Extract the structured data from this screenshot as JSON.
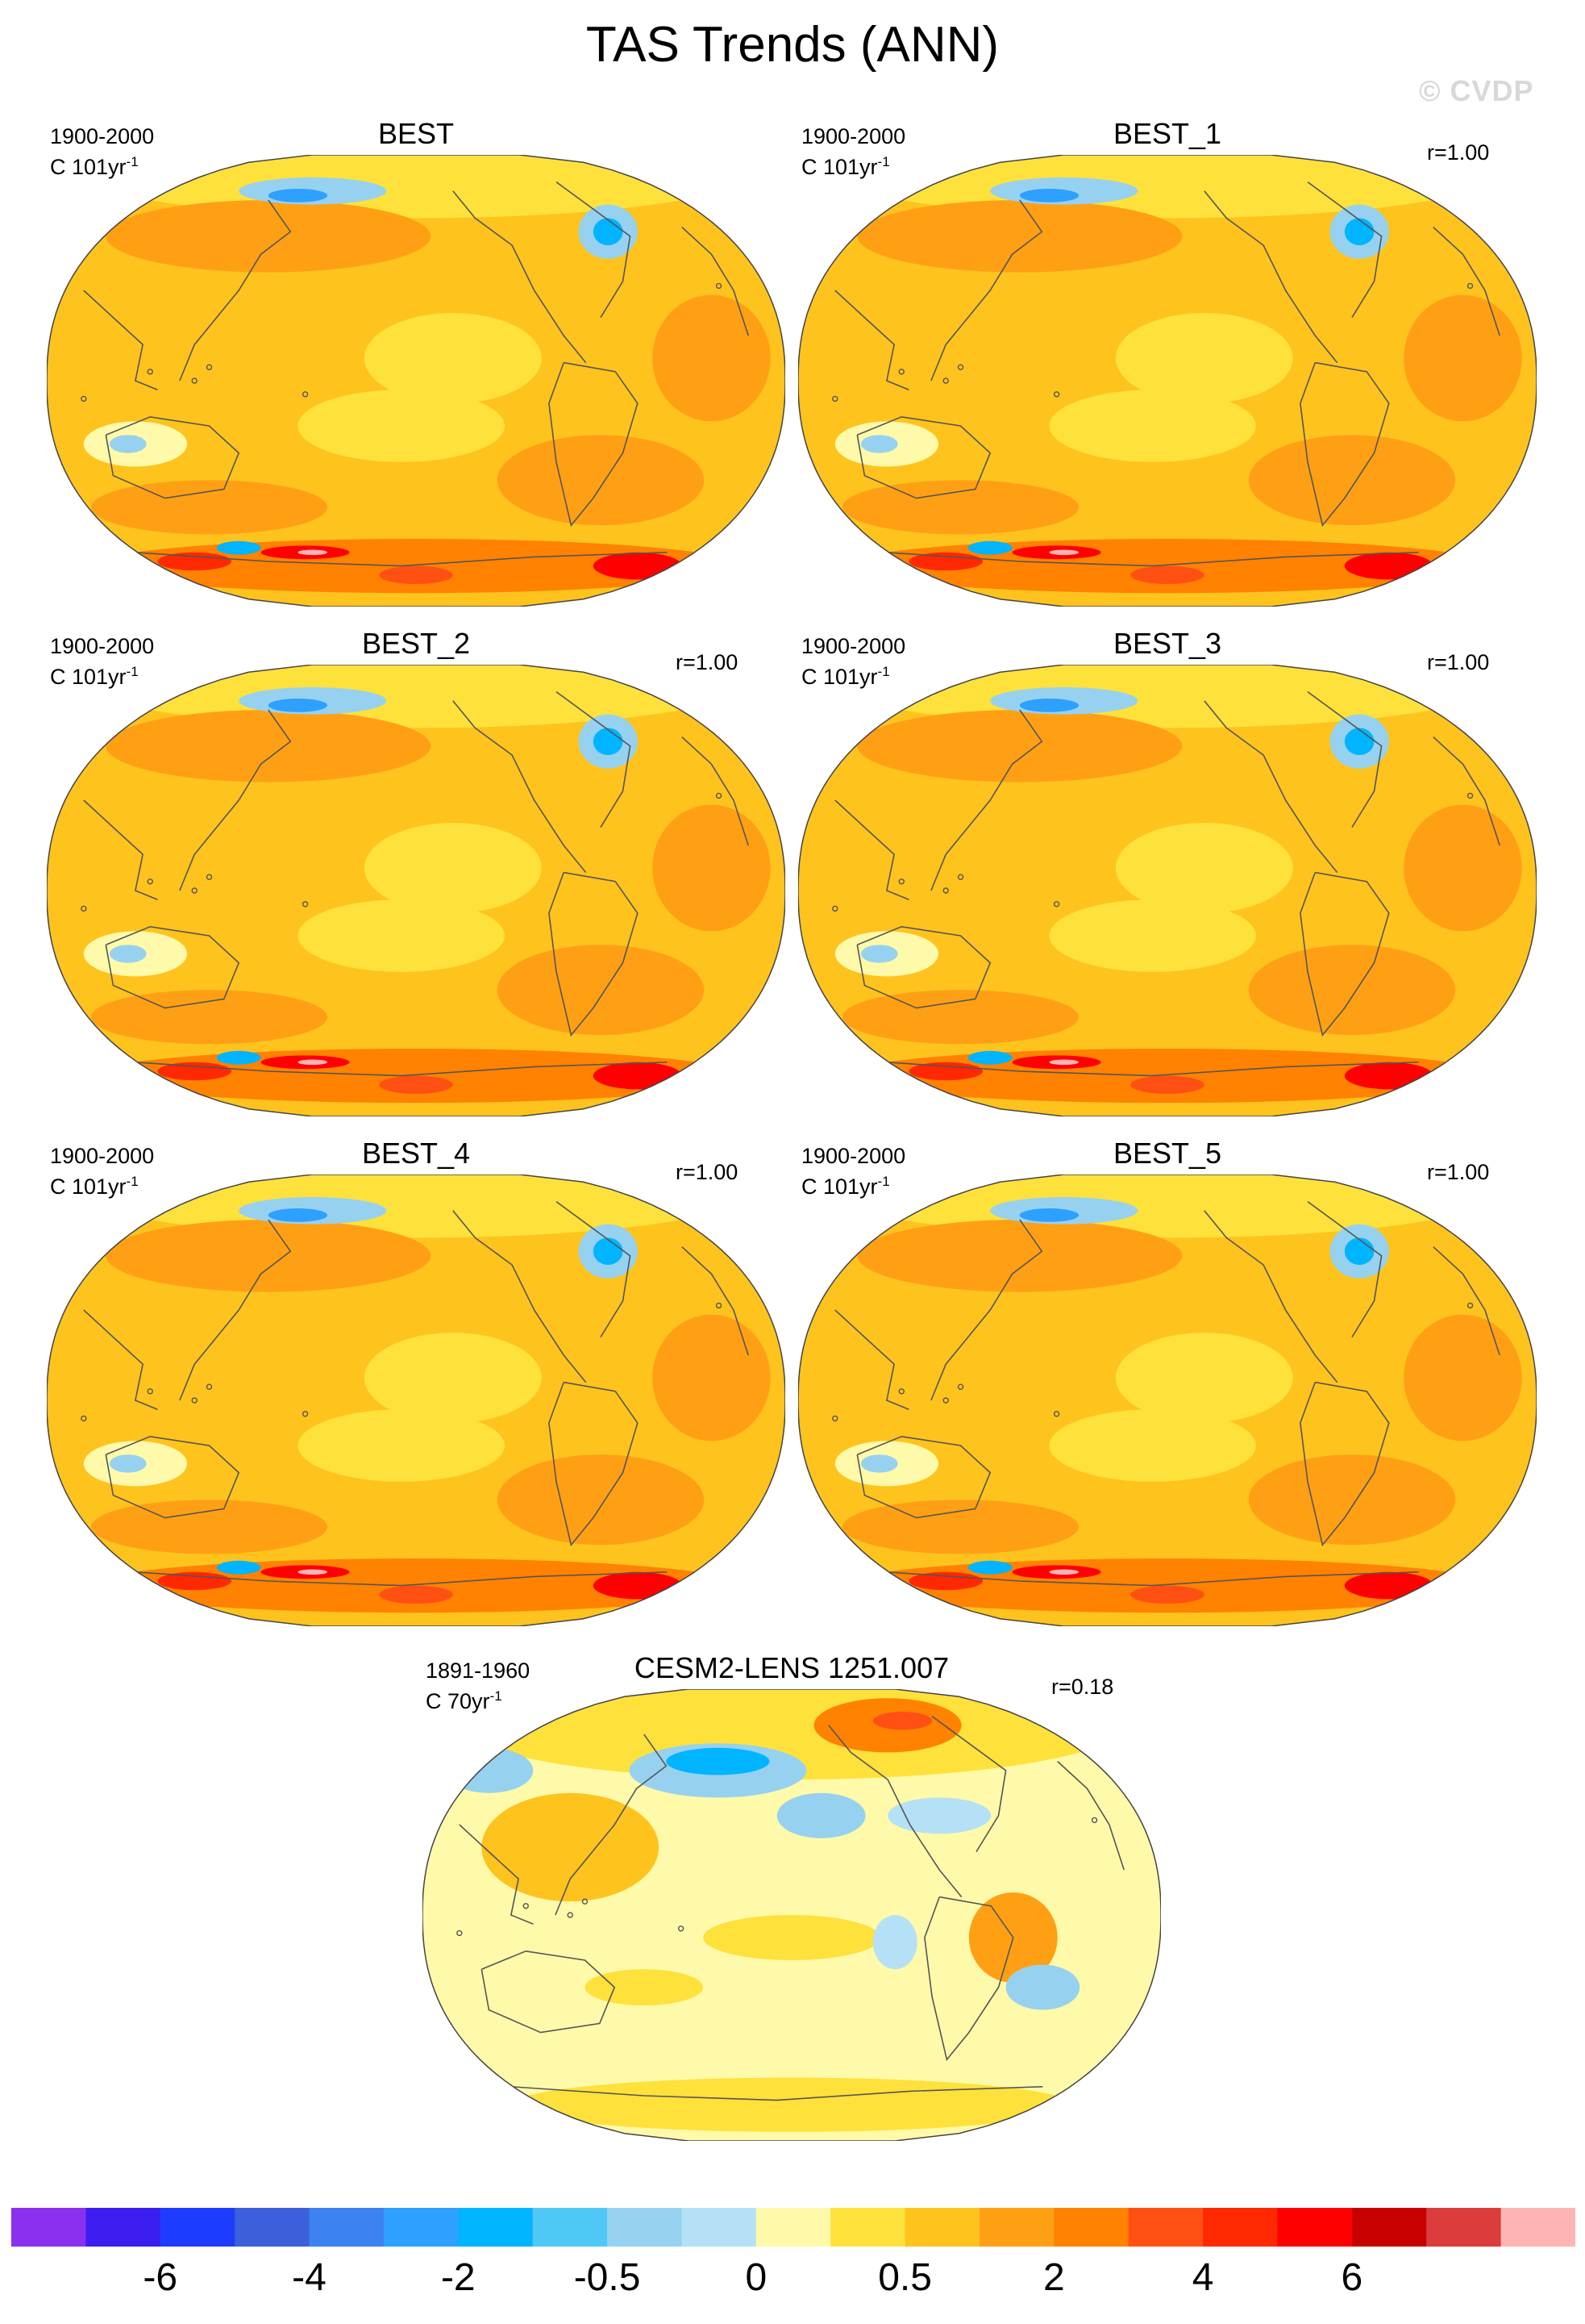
{
  "chart_data": {
    "type": "heatmap",
    "title": "TAS Trends (ANN)",
    "watermark": "© CVDP",
    "units": "C",
    "panels": [
      {
        "title": "BEST",
        "period": "1900-2000",
        "units_label": "C 101yr",
        "exponent": "-1",
        "r": null,
        "pattern": "obs"
      },
      {
        "title": "BEST_1",
        "period": "1900-2000",
        "units_label": "C 101yr",
        "exponent": "-1",
        "r": "r=1.00",
        "pattern": "obs"
      },
      {
        "title": "BEST_2",
        "period": "1900-2000",
        "units_label": "C 101yr",
        "exponent": "-1",
        "r": "r=1.00",
        "pattern": "obs"
      },
      {
        "title": "BEST_3",
        "period": "1900-2000",
        "units_label": "C 101yr",
        "exponent": "-1",
        "r": "r=1.00",
        "pattern": "obs"
      },
      {
        "title": "BEST_4",
        "period": "1900-2000",
        "units_label": "C 101yr",
        "exponent": "-1",
        "r": "r=1.00",
        "pattern": "obs"
      },
      {
        "title": "BEST_5",
        "period": "1900-2000",
        "units_label": "C 101yr",
        "exponent": "-1",
        "r": "r=1.00",
        "pattern": "obs"
      },
      {
        "title": "CESM2-LENS 1251.007",
        "period": "1891-1960",
        "units_label": "C 70yr",
        "exponent": "-1",
        "r": "r=0.18",
        "pattern": "model"
      }
    ],
    "colorbar": {
      "colors": [
        "#8c30f0",
        "#3c1ef0",
        "#1e3cff",
        "#3c5fdc",
        "#3c82f0",
        "#2ea0ff",
        "#00b4ff",
        "#50c8f5",
        "#96d2f0",
        "#b4e1f5",
        "#fffaaa",
        "#ffe13c",
        "#ffc31e",
        "#ffa014",
        "#ff8200",
        "#ff5014",
        "#ff2800",
        "#ff0000",
        "#c80000",
        "#dc3c3c",
        "#ffb4b4"
      ],
      "tick_labels": [
        "-6",
        "-4",
        "-2",
        "-0.5",
        "0",
        "0.5",
        "2",
        "4",
        "6"
      ],
      "tick_boundary_index": [
        2,
        4,
        6,
        8,
        10,
        12,
        14,
        16,
        18
      ]
    }
  }
}
